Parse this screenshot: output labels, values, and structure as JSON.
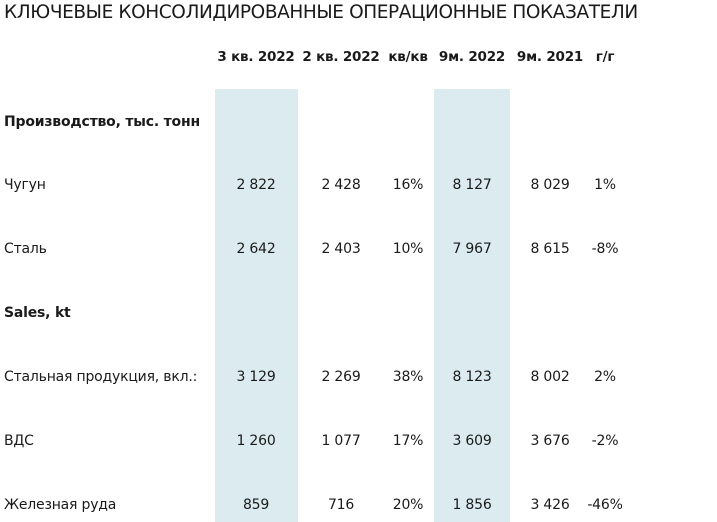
{
  "title": "КЛЮЧЕВЫЕ КОНСОЛИДИРОВАННЫЕ ОПЕРАЦИОННЫЕ ПОКАЗАТЕЛИ",
  "columns": [
    "3 кв. 2022",
    "2 кв. 2022",
    "кв/кв",
    "9м. 2022",
    "9м. 2021",
    "г/г"
  ],
  "colors": {
    "highlight": "#dcebf0",
    "text": "#1a1a1a"
  },
  "sections": [
    {
      "heading": "Производство, тыс. тонн",
      "rows": [
        {
          "label": "Чугун",
          "values": [
            "2 822",
            "2 428",
            "16%",
            "8 127",
            "8 029",
            "1%"
          ]
        },
        {
          "label": "Сталь",
          "values": [
            "2 642",
            "2 403",
            "10%",
            "7 967",
            "8 615",
            "-8%"
          ]
        }
      ]
    },
    {
      "heading": "Sales, kt",
      "rows": [
        {
          "label": "Стальная продукция, вкл.:",
          "values": [
            "3 129",
            "2 269",
            "38%",
            "8 123",
            "8 002",
            "2%"
          ]
        },
        {
          "label": "ВДС",
          "values": [
            "1 260",
            "1 077",
            "17%",
            "3 609",
            "3 676",
            "-2%"
          ]
        },
        {
          "label": "Железная руда",
          "values": [
            "859",
            "716",
            "20%",
            "1 856",
            "3 426",
            "-46%"
          ]
        }
      ]
    }
  ]
}
